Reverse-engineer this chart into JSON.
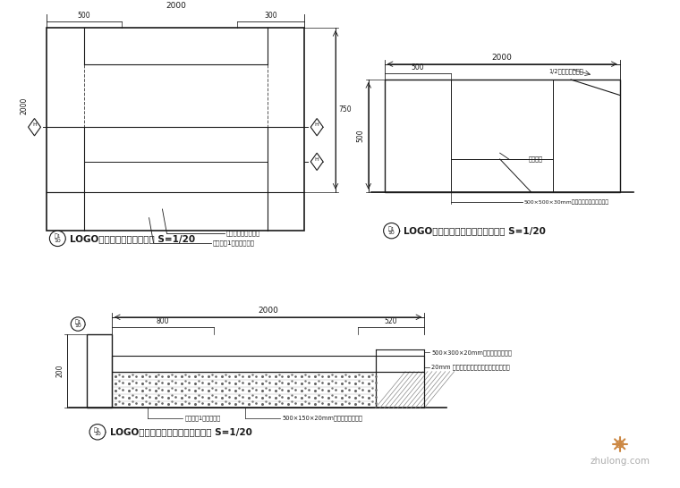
{
  "bg_color": "#ffffff",
  "line_color": "#1a1a1a",
  "title1": "LOGO平台休憩區花台平面圖 S=1/20",
  "title2": "LOGO平台休憩區花台立面圖（一） S=1/20",
  "title3": "LOGO平台休憩區花台立面圖（二） S=1/20",
  "dim_2000": "2000",
  "dim_500": "500",
  "dim_300": "300",
  "dim_750": "750",
  "dim_2000b": "2000",
  "dim_500b": "500",
  "dim_500c": "500",
  "dim_2000c": "2000",
  "dim_800": "800",
  "dim_520": "520",
  "note1": "種植土填實（壓土）",
  "note2": "鵝石子（1分半）鵝卵石",
  "note3": "石材壓蓋",
  "note4": "500×500×30mm荔面石材（燒面、亞巴）",
  "note5": "1/2塊多角邊壓頂石",
  "note6": "500×300×20mm荔面石材（燒面）",
  "note7": "20mm 荔面石材（燒面）配合鋼斜邊砌加工",
  "note8": "500×150×20mm荔面石材（燒面）",
  "note9": "鵝石子（1分半）鋼筋",
  "watermark": "zhulong.com"
}
